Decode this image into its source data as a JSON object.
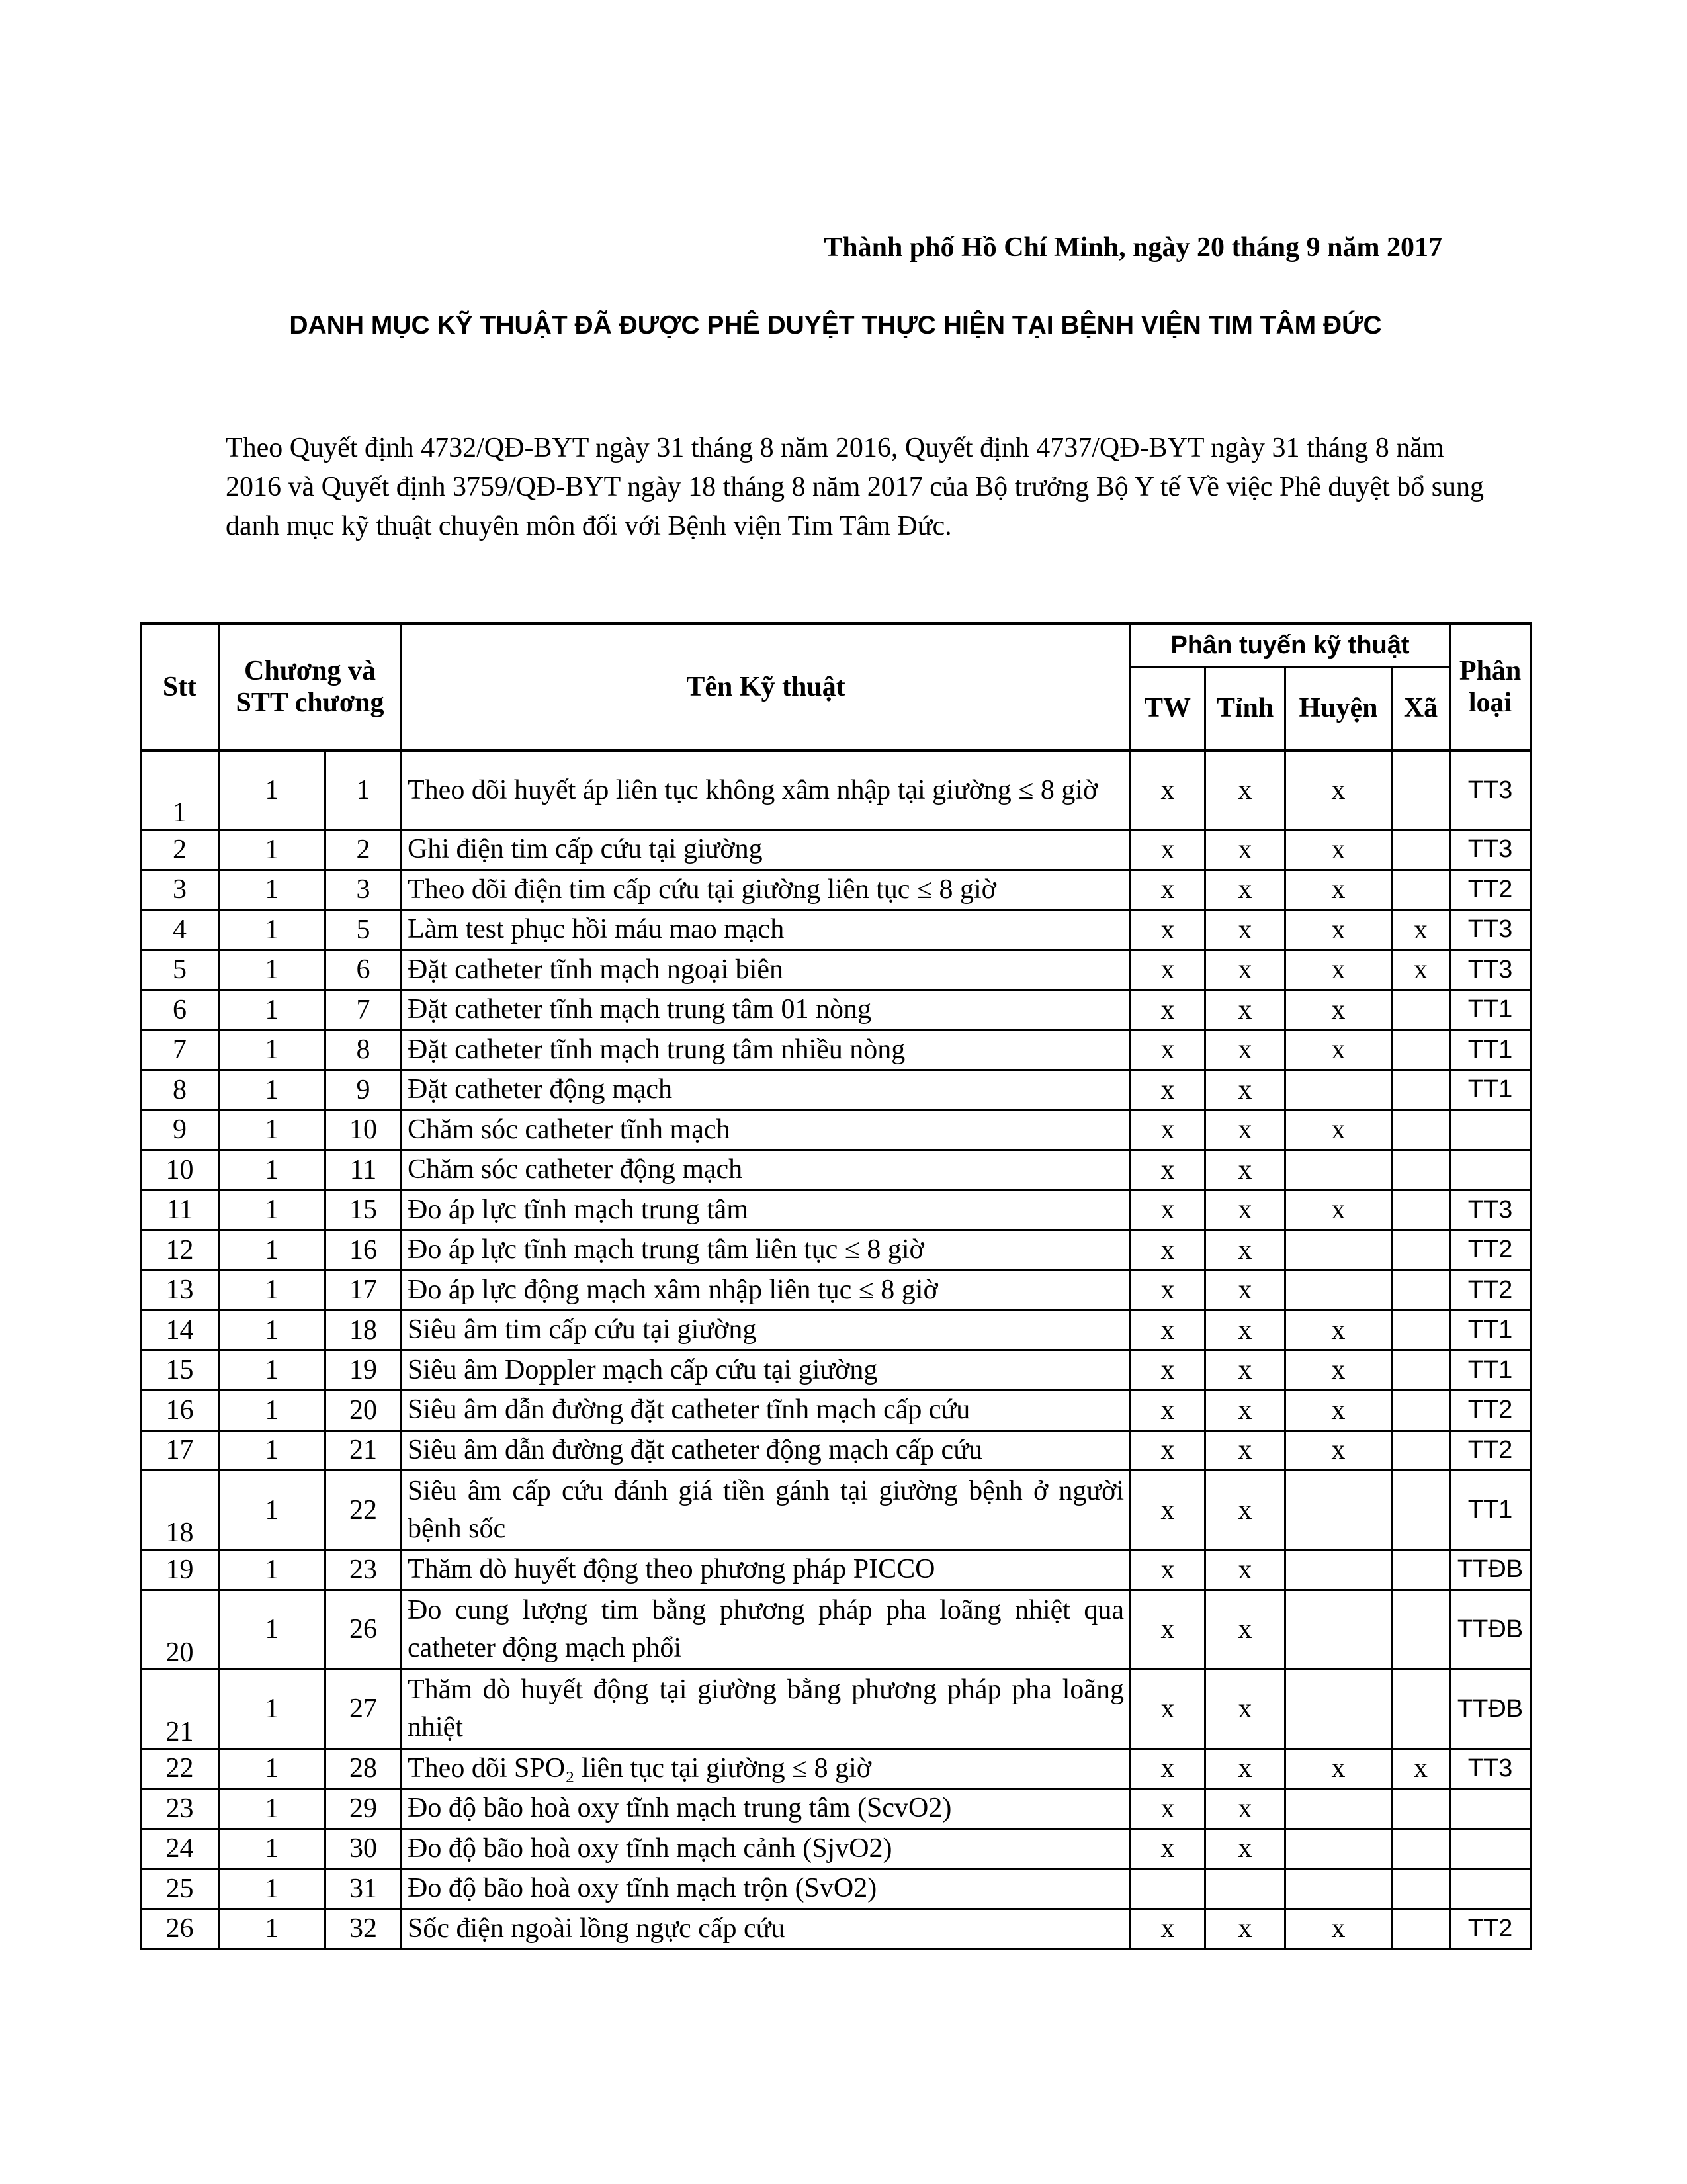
{
  "date_line": "Thành phố Hồ Chí Minh, ngày 20 tháng 9 năm 2017",
  "title": "DANH MỤC KỸ THUẬT ĐÃ ĐƯỢC PHÊ DUYỆT  THỰC HIỆN TẠI BỆNH VIỆN TIM TÂM ĐỨC",
  "intro": "Theo Quyết định 4732/QĐ-BYT ngày 31 tháng 8 năm 2016, Quyết định 4737/QĐ-BYT ngày 31 tháng 8 năm 2016 và Quyết định 3759/QĐ-BYT ngày 18 tháng 8 năm 2017  của Bộ trưởng Bộ Y tế Về việc Phê duyệt bổ sung danh mục kỹ thuật chuyên môn đối với Bệnh viện Tim Tâm Đức.",
  "table": {
    "headers": {
      "stt": "Stt",
      "chuong": "Chương và STT chương",
      "ten": "Tên Kỹ thuật",
      "phan_tuyen": "Phân tuyến kỹ thuật",
      "tw": "TW",
      "tinh": "Tỉnh",
      "huyen": "Huyện",
      "xa": "Xã",
      "phan_loai": "Phân loại"
    },
    "rows": [
      {
        "stt": "1",
        "ch": "1",
        "no": "1",
        "name": "Theo dõi huyết áp liên tục không xâm nhập tại giường ≤ 8 giờ",
        "tw": "x",
        "tinh": "x",
        "huyen": "x",
        "xa": "",
        "loai": "TT3",
        "tall": true
      },
      {
        "stt": "2",
        "ch": "1",
        "no": "2",
        "name": "Ghi điện tim cấp cứu tại giường",
        "tw": "x",
        "tinh": "x",
        "huyen": "x",
        "xa": "",
        "loai": "TT3"
      },
      {
        "stt": "3",
        "ch": "1",
        "no": "3",
        "name": "Theo dõi điện tim cấp cứu tại giường liên tục  ≤ 8 giờ",
        "tw": "x",
        "tinh": "x",
        "huyen": "x",
        "xa": "",
        "loai": "TT2"
      },
      {
        "stt": "4",
        "ch": "1",
        "no": "5",
        "name": "Làm test phục hồi máu mao mạch",
        "tw": "x",
        "tinh": "x",
        "huyen": "x",
        "xa": "x",
        "loai": "TT3"
      },
      {
        "stt": "5",
        "ch": "1",
        "no": "6",
        "name": "Đặt catheter tĩnh mạch ngoại biên",
        "tw": "x",
        "tinh": "x",
        "huyen": "x",
        "xa": "x",
        "loai": "TT3"
      },
      {
        "stt": "6",
        "ch": "1",
        "no": "7",
        "name": "Đặt catheter tĩnh mạch trung tâm 01 nòng",
        "tw": "x",
        "tinh": "x",
        "huyen": "x",
        "xa": "",
        "loai": "TT1"
      },
      {
        "stt": "7",
        "ch": "1",
        "no": "8",
        "name": "Đặt catheter tĩnh mạch trung tâm nhiều nòng",
        "tw": "x",
        "tinh": "x",
        "huyen": "x",
        "xa": "",
        "loai": "TT1"
      },
      {
        "stt": "8",
        "ch": "1",
        "no": "9",
        "name": "Đặt catheter động mạch",
        "tw": "x",
        "tinh": "x",
        "huyen": "",
        "xa": "",
        "loai": "TT1"
      },
      {
        "stt": "9",
        "ch": "1",
        "no": "10",
        "name": "Chăm sóc catheter tĩnh mạch",
        "tw": "x",
        "tinh": "x",
        "huyen": "x",
        "xa": "",
        "loai": ""
      },
      {
        "stt": "10",
        "ch": "1",
        "no": "11",
        "name": "Chăm sóc catheter động mạch",
        "tw": "x",
        "tinh": "x",
        "huyen": "",
        "xa": "",
        "loai": ""
      },
      {
        "stt": "11",
        "ch": "1",
        "no": "15",
        "name": "Đo áp lực tĩnh mạch trung tâm",
        "tw": "x",
        "tinh": "x",
        "huyen": "x",
        "xa": "",
        "loai": "TT3"
      },
      {
        "stt": "12",
        "ch": "1",
        "no": "16",
        "name": "Đo áp lực tĩnh mạch trung tâm liên tục ≤ 8 giờ",
        "tw": "x",
        "tinh": "x",
        "huyen": "",
        "xa": "",
        "loai": "TT2"
      },
      {
        "stt": "13",
        "ch": "1",
        "no": "17",
        "name": "Đo áp lực động mạch xâm nhập liên tục ≤ 8 giờ",
        "tw": "x",
        "tinh": "x",
        "huyen": "",
        "xa": "",
        "loai": "TT2"
      },
      {
        "stt": "14",
        "ch": "1",
        "no": "18",
        "name": "Siêu âm tim cấp cứu tại giường",
        "tw": "x",
        "tinh": "x",
        "huyen": "x",
        "xa": "",
        "loai": "TT1"
      },
      {
        "stt": "15",
        "ch": "1",
        "no": "19",
        "name": "Siêu âm Doppler mạch cấp cứu tại giường",
        "tw": "x",
        "tinh": "x",
        "huyen": "x",
        "xa": "",
        "loai": "TT1"
      },
      {
        "stt": "16",
        "ch": "1",
        "no": "20",
        "name": "Siêu âm dẫn đường đặt catheter tĩnh mạch cấp cứu",
        "tw": "x",
        "tinh": "x",
        "huyen": "x",
        "xa": "",
        "loai": "TT2"
      },
      {
        "stt": "17",
        "ch": "1",
        "no": "21",
        "name": "Siêu âm dẫn đường đặt catheter động mạch cấp cứu",
        "tw": "x",
        "tinh": "x",
        "huyen": "x",
        "xa": "",
        "loai": "TT2"
      },
      {
        "stt": "18",
        "ch": "1",
        "no": "22",
        "name": "Siêu âm cấp cứu đánh giá tiền gánh tại giường bệnh ở người bệnh sốc",
        "tw": "x",
        "tinh": "x",
        "huyen": "",
        "xa": "",
        "loai": "TT1",
        "tall": true
      },
      {
        "stt": "19",
        "ch": "1",
        "no": "23",
        "name": "Thăm dò huyết động theo phương pháp PICCO",
        "tw": "x",
        "tinh": "x",
        "huyen": "",
        "xa": "",
        "loai": "TTĐB"
      },
      {
        "stt": "20",
        "ch": "1",
        "no": "26",
        "name": "Đo cung lượng tim bằng phương pháp pha loãng nhiệt qua catheter động mạch phổi",
        "tw": "x",
        "tinh": "x",
        "huyen": "",
        "xa": "",
        "loai": "TTĐB",
        "tall": true
      },
      {
        "stt": "21",
        "ch": "1",
        "no": "27",
        "name": "Thăm dò huyết động tại giường bằng phương pháp pha loãng nhiệt",
        "tw": "x",
        "tinh": "x",
        "huyen": "",
        "xa": "",
        "loai": "TTĐB",
        "tall": true
      },
      {
        "stt": "22",
        "ch": "1",
        "no": "28",
        "name": "Theo dõi SPO₂ liên tục tại giường ≤ 8 giờ",
        "tw": "x",
        "tinh": "x",
        "huyen": "x",
        "xa": "x",
        "loai": "TT3"
      },
      {
        "stt": "23",
        "ch": "1",
        "no": "29",
        "name": "Đo độ bão hoà oxy tĩnh mạch trung tâm (ScvO2)",
        "tw": "x",
        "tinh": "x",
        "huyen": "",
        "xa": "",
        "loai": ""
      },
      {
        "stt": "24",
        "ch": "1",
        "no": "30",
        "name": "Đo độ bão hoà oxy tĩnh mạch cảnh (SjvO2)",
        "tw": "x",
        "tinh": "x",
        "huyen": "",
        "xa": "",
        "loai": ""
      },
      {
        "stt": "25",
        "ch": "1",
        "no": "31",
        "name": "Đo độ bão hoà oxy tĩnh mạch trộn (SvO2)",
        "tw": "",
        "tinh": "",
        "huyen": "",
        "xa": "",
        "loai": ""
      },
      {
        "stt": "26",
        "ch": "1",
        "no": "32",
        "name": "Sốc điện ngoài lồng ngực cấp cứu",
        "tw": "x",
        "tinh": "x",
        "huyen": "x",
        "xa": "",
        "loai": "TT2"
      }
    ]
  }
}
